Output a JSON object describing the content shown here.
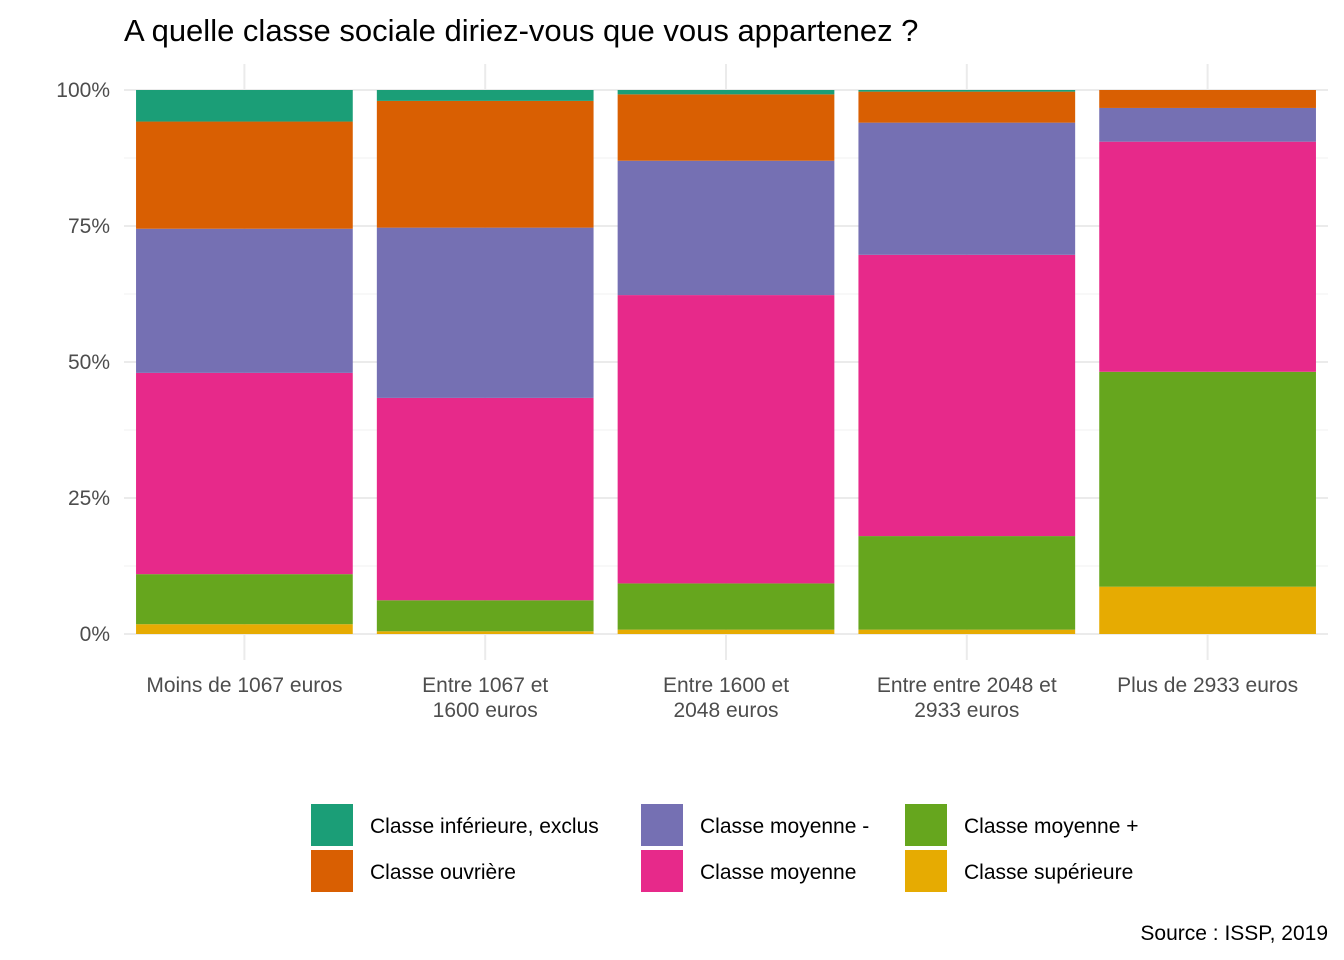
{
  "chart_data": {
    "type": "bar",
    "stacked": true,
    "normalized": true,
    "title": "A quelle classe sociale diriez-vous que vous appartenez ?",
    "caption": "Source : ISSP, 2019",
    "xlabel": "",
    "ylabel": "",
    "ylim": [
      0,
      1
    ],
    "y_ticks": [
      {
        "value": 0,
        "label": "0%"
      },
      {
        "value": 0.25,
        "label": "25%"
      },
      {
        "value": 0.5,
        "label": "50%"
      },
      {
        "value": 0.75,
        "label": "75%"
      },
      {
        "value": 1,
        "label": "100%"
      }
    ],
    "grid": true,
    "legend_position": "bottom",
    "categories": [
      [
        "Moins de 1067 euros"
      ],
      [
        "Entre 1067 et",
        "1600 euros"
      ],
      [
        "Entre 1600 et",
        "2048 euros"
      ],
      [
        "Entre entre 2048 et",
        "2933 euros"
      ],
      [
        "Plus de 2933 euros"
      ]
    ],
    "series": [
      {
        "name": "Classe supérieure",
        "color": "#E6AB02",
        "values": [
          0.018,
          0.005,
          0.008,
          0.008,
          0.087
        ]
      },
      {
        "name": "Classe moyenne +",
        "color": "#66A61E",
        "values": [
          0.092,
          0.057,
          0.085,
          0.172,
          0.395
        ]
      },
      {
        "name": "Classe moyenne",
        "color": "#E7298A",
        "values": [
          0.37,
          0.372,
          0.53,
          0.517,
          0.423
        ]
      },
      {
        "name": "Classe moyenne -",
        "color": "#7570B3",
        "values": [
          0.265,
          0.313,
          0.247,
          0.243,
          0.062
        ]
      },
      {
        "name": "Classe ouvrière",
        "color": "#D95F02",
        "values": [
          0.197,
          0.233,
          0.122,
          0.057,
          0.033
        ]
      },
      {
        "name": "Classe inférieure, exclus",
        "color": "#1B9E77",
        "values": [
          0.058,
          0.02,
          0.008,
          0.003,
          0.0
        ]
      }
    ],
    "legend_order": [
      "Classe inférieure, exclus",
      "Classe ouvrière",
      "Classe moyenne -",
      "Classe moyenne",
      "Classe moyenne +",
      "Classe supérieure"
    ]
  }
}
